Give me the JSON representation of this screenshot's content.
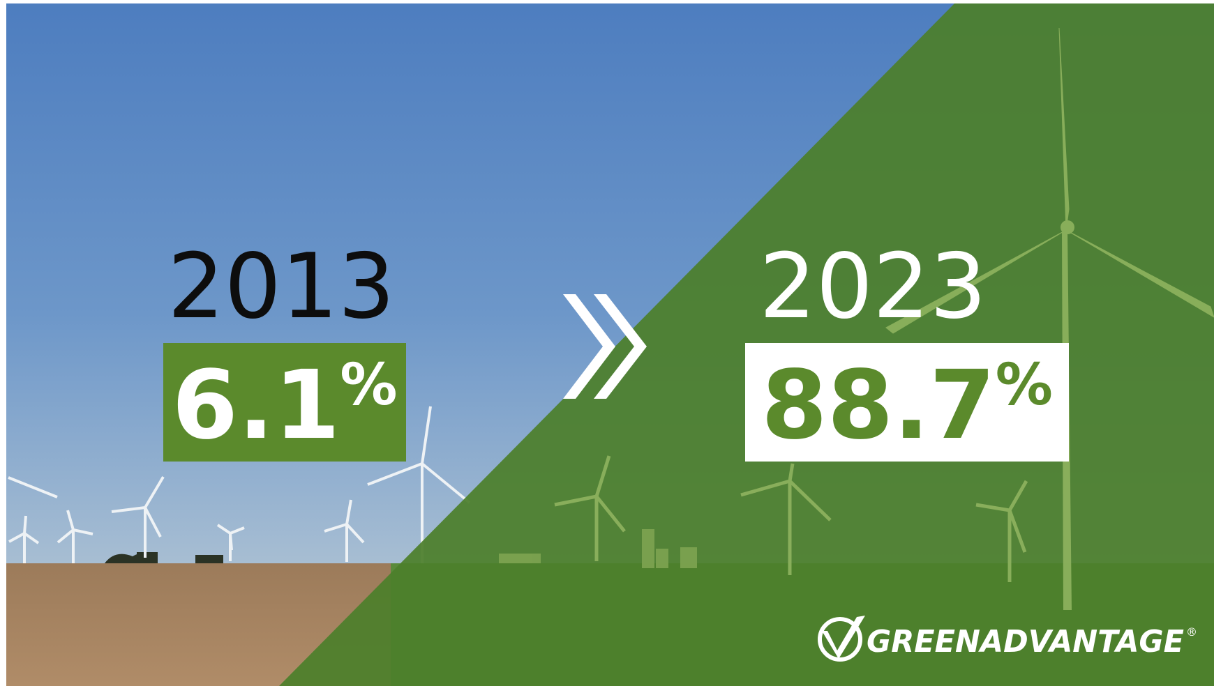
{
  "before": {
    "year": "2013",
    "value": "6.1",
    "unit": "%"
  },
  "after": {
    "year": "2023",
    "value": "88.7",
    "unit": "%"
  },
  "logo": {
    "name": "GREENADVANTAGE",
    "mark": "®"
  }
}
